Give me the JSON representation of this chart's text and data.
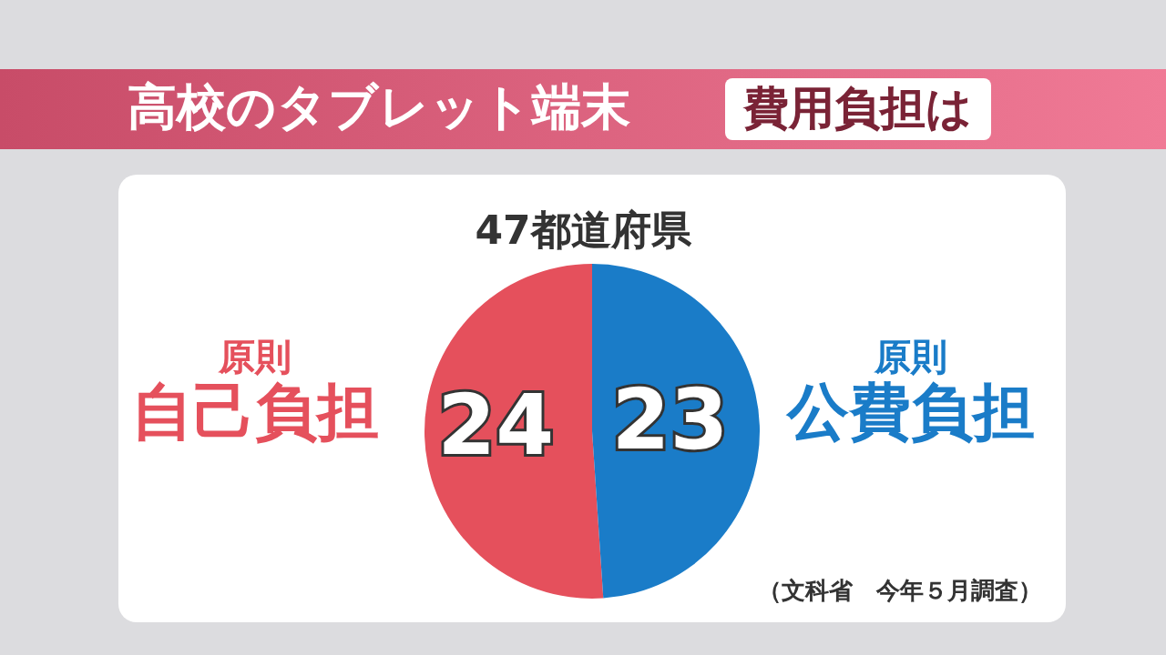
{
  "chart_data": {
    "type": "pie",
    "title": "高校のタブレット端末",
    "subtitle": "費用負担は",
    "categories": [
      "自己負担",
      "公費負担"
    ],
    "values": [
      24,
      23
    ],
    "colors": [
      "#e5505c",
      "#1a7cc8"
    ],
    "data_labels": true,
    "annotations": [
      "47都道府県",
      "（文科省　今年５月調査）",
      "原則",
      "原則"
    ]
  }
}
